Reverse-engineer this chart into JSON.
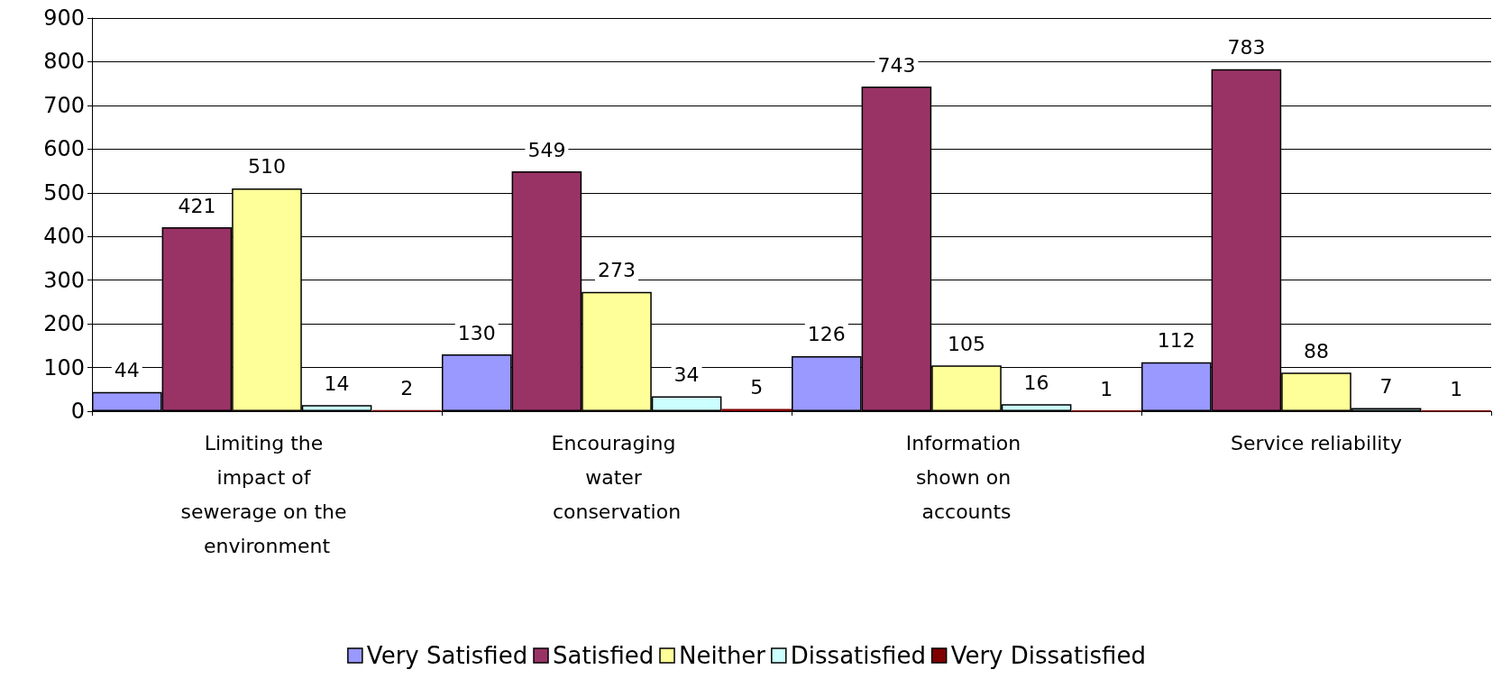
{
  "chart_data": {
    "type": "bar",
    "categories": [
      "Limiting the impact of sewerage on the environment",
      "Encouraging water conservation",
      "Information shown on accounts",
      "Service reliability"
    ],
    "series": [
      {
        "name": "Very Satisfied",
        "color": "#9999ff",
        "values": [
          44,
          130,
          126,
          112
        ]
      },
      {
        "name": "Satisfied",
        "color": "#993366",
        "values": [
          421,
          549,
          743,
          783
        ]
      },
      {
        "name": "Neither",
        "color": "#ffff99",
        "values": [
          510,
          273,
          105,
          88
        ]
      },
      {
        "name": "Dissatisfied",
        "color": "#ccffff",
        "values": [
          14,
          34,
          16,
          7
        ]
      },
      {
        "name": "Very Dissatisfied",
        "color": "#800000",
        "values": [
          2,
          5,
          1,
          1
        ]
      }
    ],
    "ylim": [
      0,
      900
    ],
    "yticks": [
      0,
      100,
      200,
      300,
      400,
      500,
      600,
      700,
      800,
      900
    ],
    "grid": "y",
    "legend": "bottom",
    "data_labels": true
  }
}
